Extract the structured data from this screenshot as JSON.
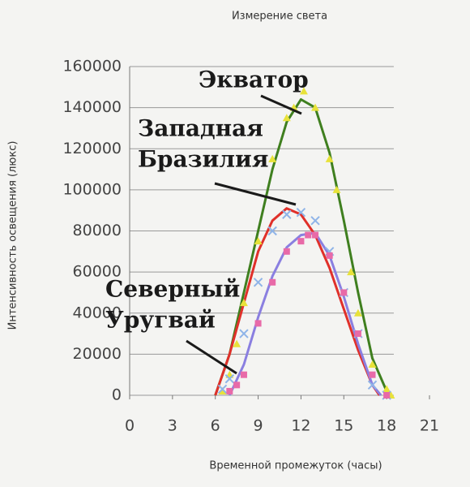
{
  "chart_data": {
    "type": "scatter",
    "title": "Измерение света",
    "x_label": "Временной промежуток (часы)",
    "y_label": "Интенсивность освещения (люкс)",
    "xlim": [
      0,
      21
    ],
    "xticks": [
      0,
      3,
      6,
      9,
      12,
      15,
      18,
      21
    ],
    "ylim": [
      0,
      160000
    ],
    "yticks": [
      0,
      20000,
      40000,
      60000,
      80000,
      100000,
      120000,
      140000,
      160000
    ],
    "grid": true,
    "series": [
      {
        "marker": "triangle",
        "color": "#e8e23a",
        "x": [
          6.5,
          7,
          7.5,
          8,
          9,
          10,
          11,
          11.5,
          12.2,
          13,
          14,
          14.5,
          15.5,
          16,
          17,
          18,
          18.3
        ],
        "values": [
          2000,
          10000,
          25000,
          45000,
          75000,
          115000,
          135000,
          140000,
          148000,
          140000,
          115000,
          100000,
          60000,
          40000,
          15000,
          3000,
          0
        ]
      },
      {
        "marker": "cross",
        "color": "#8fb4e8",
        "x": [
          6.5,
          7,
          8,
          9,
          10,
          11,
          12,
          13,
          14,
          15,
          16,
          17,
          18
        ],
        "values": [
          3000,
          8000,
          30000,
          55000,
          80000,
          88000,
          89000,
          85000,
          70000,
          50000,
          30000,
          5000,
          0
        ]
      },
      {
        "marker": "square",
        "color": "#e86aa8",
        "x": [
          7,
          7.5,
          8,
          9,
          10,
          11,
          12,
          12.5,
          13,
          14,
          15,
          16,
          17,
          18
        ],
        "values": [
          2000,
          5000,
          10000,
          35000,
          55000,
          70000,
          75000,
          78000,
          78000,
          68000,
          50000,
          30000,
          10000,
          0
        ]
      }
    ],
    "lines": [
      {
        "color": "#3f7f1f",
        "x": [
          6,
          7,
          8,
          9,
          10,
          11,
          12,
          13,
          14,
          15,
          16,
          17,
          18
        ],
        "values": [
          0,
          20000,
          50000,
          80000,
          110000,
          133000,
          144000,
          140000,
          118000,
          85000,
          50000,
          18000,
          2000
        ]
      },
      {
        "color": "#e0302a",
        "x": [
          6,
          7,
          8,
          9,
          10,
          11,
          12,
          13,
          14,
          15,
          16,
          17,
          17.5
        ],
        "values": [
          0,
          20000,
          45000,
          70000,
          85000,
          91000,
          88000,
          78000,
          62000,
          42000,
          22000,
          5000,
          0
        ]
      },
      {
        "color": "#8a7fe0",
        "x": [
          7,
          8,
          9,
          10,
          11,
          12,
          13,
          14,
          15,
          16,
          17,
          17.6
        ],
        "values": [
          0,
          15000,
          38000,
          58000,
          72000,
          78000,
          79000,
          68000,
          48000,
          25000,
          5000,
          0
        ]
      }
    ],
    "annotations": [
      {
        "lines": [
          "Экватор"
        ]
      },
      {
        "lines": [
          "Западная",
          "Бразилия"
        ]
      },
      {
        "lines": [
          "Северный",
          "Уругвай"
        ]
      }
    ]
  }
}
